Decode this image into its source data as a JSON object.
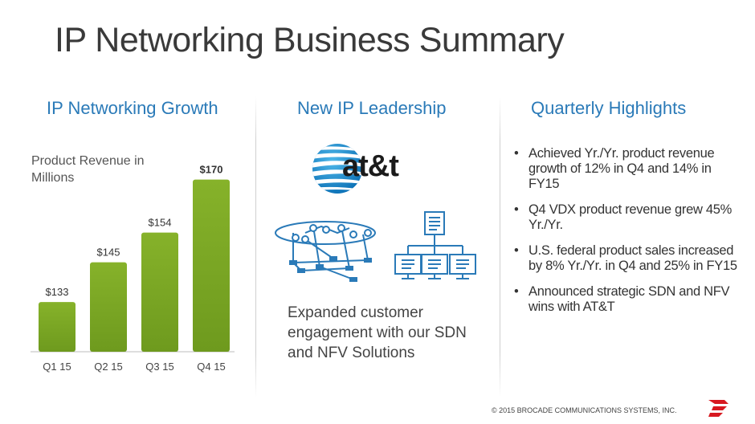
{
  "slide": {
    "title": "IP Networking Business Summary",
    "footer": "© 2015 BROCADE COMMUNICATIONS SYSTEMS, INC."
  },
  "columns": {
    "growth_heading": "IP Networking Growth",
    "leadership_heading": "New IP Leadership",
    "highlights_heading": "Quarterly Highlights"
  },
  "leadership": {
    "logo_text": "at&t",
    "caption": "Expanded customer engagement with our SDN and NFV Solutions"
  },
  "highlights": {
    "items": [
      "Achieved Yr./Yr. product revenue growth of 12% in Q4 and 14% in FY15",
      "Q4 VDX product revenue grew 45% Yr./Yr.",
      "U.S. federal product sales increased by 8% Yr./Yr. in Q4 and 25% in FY15",
      "Announced strategic SDN and NFV wins with AT&T"
    ]
  },
  "chart_data": {
    "type": "bar",
    "title": "",
    "annotation": "Product Revenue in Millions",
    "categories": [
      "Q1 15",
      "Q2 15",
      "Q3 15",
      "Q4 15"
    ],
    "values": [
      133,
      145,
      154,
      170
    ],
    "data_labels": [
      "$133",
      "$145",
      "$154",
      "$170"
    ],
    "bold_labels": [
      false,
      false,
      false,
      true
    ],
    "xlabel": "",
    "ylabel": "",
    "ylim": [
      118,
      175
    ],
    "grid": false,
    "legend": "none",
    "bar_color": "#6e9a1e",
    "bar_color_light": "#86b22a"
  },
  "colors": {
    "heading": "#2a7ab8",
    "bar": "#6e9a1e",
    "logo_red": "#d71920"
  }
}
